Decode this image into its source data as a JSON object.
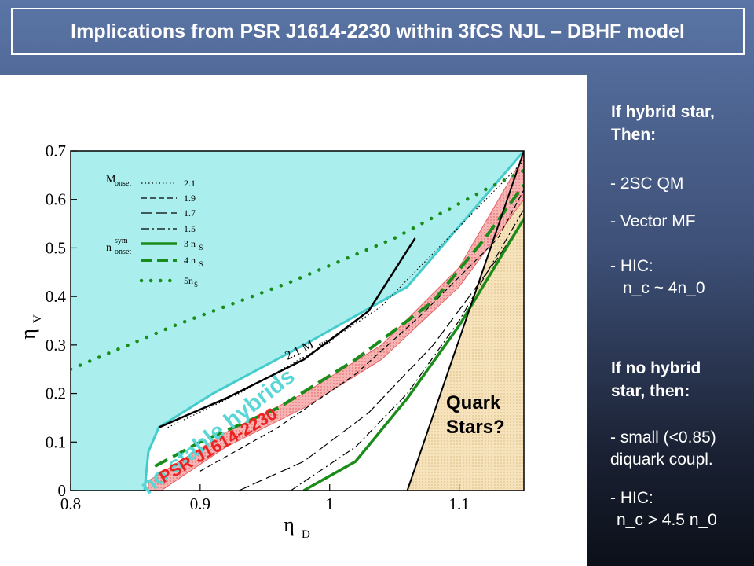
{
  "slide": {
    "title": "Implications from PSR J1614-2230 within 3fCS NJL – DBHF model"
  },
  "figure": {
    "region_labels": {
      "no_stable": "no stable hybrids",
      "psr": "PSR J1614-2230",
      "quark_stars_1": "Quark",
      "quark_stars_2": "Stars?",
      "mass_line": "2.1 M",
      "mass_line_sub": "sun"
    },
    "legend": {
      "m_onset": "M",
      "m_onset_sub": "onset",
      "n_onset": "n",
      "n_onset_sub": "onset",
      "n_onset_sup": "sym",
      "entries": [
        {
          "label": "2.1",
          "style": "dotted-thin"
        },
        {
          "label": "1.9",
          "style": "dashed-short"
        },
        {
          "label": "1.7",
          "style": "dashed-long"
        },
        {
          "label": "1.5",
          "style": "dash-dot"
        },
        {
          "label": "3 n",
          "sub": "S",
          "style": "green-solid"
        },
        {
          "label": "4 n",
          "sub": "S",
          "style": "green-dashed"
        },
        {
          "label": "5n",
          "sub": "S",
          "style": "green-dotted"
        }
      ]
    },
    "colors": {
      "no_stable": "#aaeeee",
      "cyan_line": "#44cccc",
      "psr_band": "#f4a6a6",
      "quark_fill": "#f5deb3",
      "green": "#1a8c1a"
    }
  },
  "chart_data": {
    "type": "line",
    "xlabel": "η",
    "xlabel_sub": "D",
    "ylabel": "η",
    "ylabel_sub": "V",
    "xlim": [
      0.8,
      1.15
    ],
    "ylim": [
      0,
      0.7
    ],
    "x_ticks": [
      "0.8",
      "0.9",
      "1",
      "1.1"
    ],
    "y_ticks": [
      "0",
      "0.1",
      "0.2",
      "0.3",
      "0.4",
      "0.5",
      "0.6",
      "0.7"
    ],
    "series": [
      {
        "name": "cyan boundary",
        "points": [
          [
            0.857,
            0.0
          ],
          [
            0.86,
            0.08
          ],
          [
            0.868,
            0.13
          ],
          [
            0.91,
            0.2
          ],
          [
            0.98,
            0.3
          ],
          [
            1.06,
            0.42
          ],
          [
            1.15,
            0.7
          ]
        ]
      },
      {
        "name": "M_onset 2.1 solid black",
        "points": [
          [
            0.868,
            0.13
          ],
          [
            0.92,
            0.19
          ],
          [
            0.98,
            0.27
          ],
          [
            1.03,
            0.37
          ],
          [
            1.066,
            0.52
          ]
        ]
      },
      {
        "name": "M_onset 2.1",
        "points": [
          [
            0.875,
            0.13
          ],
          [
            0.93,
            0.2
          ],
          [
            0.99,
            0.29
          ],
          [
            1.04,
            0.38
          ],
          [
            1.15,
            0.68
          ]
        ]
      },
      {
        "name": "M_onset 1.9",
        "points": [
          [
            0.9,
            0.04
          ],
          [
            0.96,
            0.13
          ],
          [
            1.02,
            0.24
          ],
          [
            1.07,
            0.36
          ],
          [
            1.13,
            0.52
          ],
          [
            1.15,
            0.62
          ]
        ]
      },
      {
        "name": "M_onset 1.7",
        "points": [
          [
            0.93,
            0.0
          ],
          [
            0.98,
            0.06
          ],
          [
            1.03,
            0.16
          ],
          [
            1.08,
            0.3
          ],
          [
            1.13,
            0.48
          ],
          [
            1.15,
            0.56
          ]
        ]
      },
      {
        "name": "M_onset 1.5",
        "points": [
          [
            0.97,
            0.0
          ],
          [
            1.02,
            0.09
          ],
          [
            1.06,
            0.2
          ],
          [
            1.1,
            0.35
          ],
          [
            1.15,
            0.58
          ]
        ]
      },
      {
        "name": "3 n_S",
        "points": [
          [
            0.98,
            0.0
          ],
          [
            1.02,
            0.06
          ],
          [
            1.06,
            0.19
          ],
          [
            1.1,
            0.34
          ],
          [
            1.15,
            0.56
          ]
        ]
      },
      {
        "name": "4 n_S",
        "points": [
          [
            0.865,
            0.05
          ],
          [
            0.9,
            0.1
          ],
          [
            0.96,
            0.17
          ],
          [
            1.02,
            0.27
          ],
          [
            1.08,
            0.39
          ],
          [
            1.12,
            0.52
          ],
          [
            1.15,
            0.63
          ]
        ]
      },
      {
        "name": "5 n_S",
        "points": [
          [
            0.8,
            0.25
          ],
          [
            0.88,
            0.34
          ],
          [
            0.97,
            0.43
          ],
          [
            1.05,
            0.52
          ],
          [
            1.12,
            0.62
          ],
          [
            1.15,
            0.66
          ]
        ]
      },
      {
        "name": "quark stars boundary",
        "points": [
          [
            1.06,
            0.0
          ],
          [
            1.15,
            0.7
          ]
        ]
      }
    ]
  },
  "sidebar": {
    "hybrid_head_1": "If hybrid star,",
    "hybrid_head_2": "Then:",
    "item_2sc": "- 2SC QM",
    "item_vector": "- Vector MF",
    "item_hic1_a": "- HIC:",
    "item_hic1_b": "n_c ~ 4n_0",
    "nohybrid_head_1": "If no hybrid",
    "nohybrid_head_2": "star, then:",
    "item_small_a": "- small (<0.85)",
    "item_small_b": "diquark coupl.",
    "item_hic2_a": "- HIC:",
    "item_hic2_b": "n_c > 4.5 n_0"
  }
}
